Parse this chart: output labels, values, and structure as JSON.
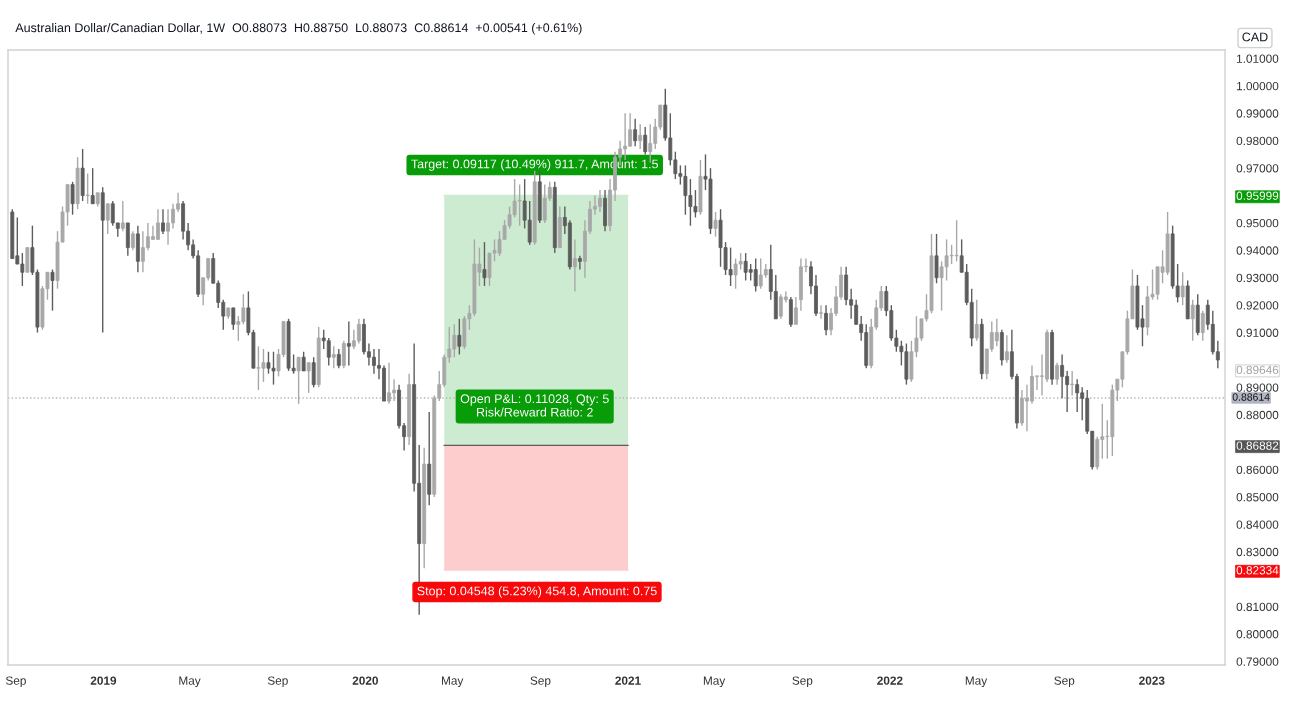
{
  "chart_data": {
    "type": "candlestick",
    "title": "Australian Dollar/Canadian Dollar, 1W  O0.88073  H0.88750  L0.88073  C0.88614  +0.00541 (+0.61%)",
    "colors": [
      "#5c5c5c",
      "#5c5c5c",
      "#5c5c5c",
      "#a8a8a8",
      "#5c5c5c",
      "#5c5c5c",
      "#a8a8a8",
      "#a8a8a8",
      "#5c5c5c",
      "#a8a8a8",
      "#a8a8a8",
      "#a8a8a8",
      "#5c5c5c",
      "#a8a8a8",
      "#5c5c5c",
      "#a8a8a8",
      "#5c5c5c",
      "#a8a8a8",
      "#5c5c5c",
      "#a8a8a8",
      "#5c5c5c",
      "#5c5c5c",
      "#a8a8a8",
      "#5c5c5c",
      "#a8a8a8",
      "#5c5c5c",
      "#a8a8a8",
      "#a8a8a8",
      "#a8a8a8",
      "#a8a8a8",
      "#5c5c5c",
      "#a8a8a8",
      "#a8a8a8",
      "#a8a8a8",
      "#5c5c5c",
      "#5c5c5c",
      "#5c5c5c",
      "#5c5c5c",
      "#a8a8a8",
      "#a8a8a8",
      "#5c5c5c",
      "#5c5c5c",
      "#5c5c5c",
      "#a8a8a8",
      "#5c5c5c",
      "#a8a8a8",
      "#a8a8a8",
      "#5c5c5c",
      "#5c5c5c",
      "#a8a8a8",
      "#a8a8a8",
      "#5c5c5c",
      "#5c5c5c",
      "#a8a8a8",
      "#a8a8a8",
      "#5c5c5c",
      "#5c5c5c",
      "#a8a8a8",
      "#5c5c5c",
      "#a8a8a8",
      "#5c5c5c",
      "#a8a8a8",
      "#5c5c5c",
      "#5c5c5c",
      "#a8a8a8",
      "#5c5c5c",
      "#a8a8a8",
      "#5c5c5c",
      "#a8a8a8",
      "#a8a8a8",
      "#5c5c5c",
      "#5c5c5c",
      "#5c5c5c",
      "#5c5c5c",
      "#5c5c5c",
      "#a8a8a8",
      "#a8a8a8",
      "#5c5c5c",
      "#5c5c5c",
      "#a8a8a8",
      "#5c5c5c",
      "#5c5c5c",
      "#a8a8a8",
      "#5c5c5c",
      "#a8a8a8",
      "#a8a8a8",
      "#a8a8a8",
      "#a8a8a8",
      "#a8a8a8",
      "#5c5c5c",
      "#a8a8a8",
      "#a8a8a8",
      "#a8a8a8",
      "#a8a8a8",
      "#5c5c5c",
      "#a8a8a8",
      "#a8a8a8",
      "#a8a8a8",
      "#a8a8a8",
      "#a8a8a8",
      "#a8a8a8",
      "#a8a8a8",
      "#5c5c5c",
      "#5c5c5c",
      "#a8a8a8",
      "#5c5c5c",
      "#a8a8a8",
      "#a8a8a8",
      "#5c5c5c",
      "#a8a8a8",
      "#5c5c5c",
      "#5c5c5c",
      "#a8a8a8",
      "#5c5c5c",
      "#a8a8a8",
      "#a8a8a8",
      "#a8a8a8",
      "#a8a8a8",
      "#5c5c5c",
      "#a8a8a8",
      "#a8a8a8",
      "#a8a8a8",
      "#a8a8a8",
      "#a8a8a8",
      "#5c5c5c",
      "#a8a8a8",
      "#5c5c5c",
      "#a8a8a8",
      "#a8a8a8",
      "#a8a8a8",
      "#5c5c5c",
      "#5c5c5c",
      "#5c5c5c",
      "#5c5c5c",
      "#5c5c5c",
      "#5c5c5c",
      "#5c5c5c",
      "#a8a8a8",
      "#5c5c5c",
      "#5c5c5c",
      "#a8a8a8",
      "#5c5c5c",
      "#5c5c5c",
      "#5c5c5c",
      "#a8a8a8",
      "#a8a8a8",
      "#5c5c5c",
      "#5c5c5c",
      "#5c5c5c",
      "#a8a8a8",
      "#a8a8a8",
      "#5c5c5c",
      "#5c5c5c",
      "#a8a8a8",
      "#a8a8a8",
      "#5c5c5c",
      "#a8a8a8",
      "#a8a8a8",
      "#a8a8a8",
      "#5c5c5c",
      "#5c5c5c",
      "#a8a8a8",
      "#5c5c5c",
      "#a8a8a8",
      "#a8a8a8",
      "#a8a8a8",
      "#5c5c5c",
      "#5c5c5c",
      "#5c5c5c",
      "#5c5c5c",
      "#5c5c5c",
      "#a8a8a8",
      "#a8a8a8",
      "#a8a8a8",
      "#5c5c5c",
      "#5c5c5c",
      "#5c5c5c",
      "#5c5c5c",
      "#5c5c5c",
      "#a8a8a8",
      "#a8a8a8",
      "#a8a8a8",
      "#a8a8a8",
      "#a8a8a8",
      "#5c5c5c",
      "#a8a8a8",
      "#a8a8a8",
      "#a8a8a8",
      "#a8a8a8",
      "#5c5c5c",
      "#5c5c5c",
      "#5c5c5c",
      "#a8a8a8",
      "#5c5c5c",
      "#a8a8a8",
      "#a8a8a8",
      "#a8a8a8",
      "#5c5c5c",
      "#a8a8a8",
      "#5c5c5c",
      "#5c5c5c",
      "#a8a8a8",
      "#a8a8a8",
      "#a8a8a8",
      "#a8a8a8",
      "#a8a8a8",
      "#a8a8a8",
      "#5c5c5c",
      "#a8a8a8",
      "#5c5c5c",
      "#5c5c5c",
      "#a8a8a8",
      "#5c5c5c",
      "#5c5c5c",
      "#5c5c5c",
      "#5c5c5c",
      "#a8a8a8",
      "#a8a8a8",
      "#a8a8a8",
      "#a8a8a8",
      "#a8a8a8",
      "#a8a8a8",
      "#a8a8a8",
      "#a8a8a8",
      "#5c5c5c",
      "#5c5c5c",
      "#a8a8a8",
      "#a8a8a8",
      "#a8a8a8",
      "#a8a8a8",
      "#a8a8a8",
      "#5c5c5c",
      "#5c5c5c",
      "#a8a8a8",
      "#5c5c5c",
      "#a8a8a8",
      "#5c5c5c",
      "#a8a8a8",
      "#5c5c5c",
      "#5c5c5c",
      "#5c5c5c"
    ],
    "x": [
      "2018-08-27",
      "2018-09-03",
      "2018-09-10",
      "2018-09-17",
      "2018-09-24",
      "2018-10-01",
      "2018-10-08",
      "2018-10-15",
      "2018-10-22",
      "2018-10-29",
      "2018-11-05",
      "2018-11-12",
      "2018-11-19",
      "2018-11-26",
      "2018-12-03",
      "2018-12-10",
      "2018-12-17",
      "2018-12-24",
      "2018-12-31",
      "2019-01-07",
      "2019-01-14",
      "2019-01-21",
      "2019-01-28",
      "2019-02-04",
      "2019-02-11",
      "2019-02-18",
      "2019-02-25",
      "2019-03-04",
      "2019-03-11",
      "2019-03-18",
      "2019-03-25",
      "2019-04-01",
      "2019-04-08",
      "2019-04-15",
      "2019-04-22",
      "2019-04-29",
      "2019-05-06",
      "2019-05-13",
      "2019-05-20",
      "2019-05-27",
      "2019-06-03",
      "2019-06-10",
      "2019-06-17",
      "2019-06-24",
      "2019-07-01",
      "2019-07-08",
      "2019-07-15",
      "2019-07-22",
      "2019-07-29",
      "2019-08-05",
      "2019-08-12",
      "2019-08-19",
      "2019-08-26",
      "2019-09-02",
      "2019-09-09",
      "2019-09-16",
      "2019-09-23",
      "2019-09-30",
      "2019-10-07",
      "2019-10-14",
      "2019-10-21",
      "2019-10-28",
      "2019-11-04",
      "2019-11-11",
      "2019-11-18",
      "2019-11-25",
      "2019-12-02",
      "2019-12-09",
      "2019-12-16",
      "2019-12-23",
      "2019-12-30",
      "2020-01-06",
      "2020-01-13",
      "2020-01-20",
      "2020-01-27",
      "2020-02-03",
      "2020-02-10",
      "2020-02-17",
      "2020-02-24",
      "2020-03-02",
      "2020-03-09",
      "2020-03-16",
      "2020-03-23",
      "2020-03-30",
      "2020-04-06",
      "2020-04-13",
      "2020-04-20",
      "2020-04-27",
      "2020-05-04",
      "2020-05-11",
      "2020-05-18",
      "2020-05-25",
      "2020-06-01",
      "2020-06-08",
      "2020-06-15",
      "2020-06-22",
      "2020-06-29",
      "2020-07-06",
      "2020-07-13",
      "2020-07-20",
      "2020-07-27",
      "2020-08-03",
      "2020-08-10",
      "2020-08-17",
      "2020-08-24",
      "2020-08-31",
      "2020-09-07",
      "2020-09-14",
      "2020-09-21",
      "2020-09-28",
      "2020-10-05",
      "2020-10-12",
      "2020-10-19",
      "2020-10-26",
      "2020-11-02",
      "2020-11-09",
      "2020-11-16",
      "2020-11-23",
      "2020-11-30",
      "2020-12-07",
      "2020-12-14",
      "2020-12-21",
      "2020-12-28",
      "2021-01-04",
      "2021-01-11",
      "2021-01-18",
      "2021-01-25",
      "2021-02-01",
      "2021-02-08",
      "2021-02-15",
      "2021-02-22",
      "2021-03-01",
      "2021-03-08",
      "2021-03-15",
      "2021-03-22",
      "2021-03-29",
      "2021-04-05",
      "2021-04-12",
      "2021-04-19",
      "2021-04-26",
      "2021-05-03",
      "2021-05-10",
      "2021-05-17",
      "2021-05-24",
      "2021-05-31",
      "2021-06-07",
      "2021-06-14",
      "2021-06-21",
      "2021-06-28",
      "2021-07-05",
      "2021-07-12",
      "2021-07-19",
      "2021-07-26",
      "2021-08-02",
      "2021-08-09",
      "2021-08-16",
      "2021-08-23",
      "2021-08-30",
      "2021-09-06",
      "2021-09-13",
      "2021-09-20",
      "2021-09-27",
      "2021-10-04",
      "2021-10-11",
      "2021-10-18",
      "2021-10-25",
      "2021-11-01",
      "2021-11-08",
      "2021-11-15",
      "2021-11-22",
      "2021-11-29",
      "2021-12-06",
      "2021-12-13",
      "2021-12-20",
      "2021-12-27",
      "2022-01-03",
      "2022-01-10",
      "2022-01-17",
      "2022-01-24",
      "2022-01-31",
      "2022-02-07",
      "2022-02-14",
      "2022-02-21",
      "2022-02-28",
      "2022-03-07",
      "2022-03-14",
      "2022-03-21",
      "2022-03-28",
      "2022-04-04",
      "2022-04-11",
      "2022-04-18",
      "2022-04-25",
      "2022-05-02",
      "2022-05-09",
      "2022-05-16",
      "2022-05-23",
      "2022-05-30",
      "2022-06-06",
      "2022-06-13",
      "2022-06-20",
      "2022-06-27",
      "2022-07-04",
      "2022-07-11",
      "2022-07-18",
      "2022-07-25",
      "2022-08-01",
      "2022-08-08",
      "2022-08-15",
      "2022-08-22",
      "2022-08-29",
      "2022-09-05",
      "2022-09-12",
      "2022-09-19",
      "2022-09-26",
      "2022-10-03",
      "2022-10-10",
      "2022-10-17",
      "2022-10-24",
      "2022-10-31",
      "2022-11-07",
      "2022-11-14",
      "2022-11-21",
      "2022-11-28",
      "2022-12-05",
      "2022-12-12",
      "2022-12-19",
      "2022-12-26",
      "2023-01-02",
      "2023-01-09",
      "2023-01-16",
      "2023-01-23",
      "2023-01-30",
      "2023-02-06",
      "2023-02-13",
      "2023-02-20",
      "2023-02-27",
      "2023-03-06",
      "2023-03-13",
      "2023-03-20",
      "2023-03-27",
      "2023-04-03"
    ],
    "ohlc": [
      [
        0.954,
        0.955,
        0.937,
        0.937
      ],
      [
        0.938,
        0.952,
        0.935,
        0.935
      ],
      [
        0.935,
        0.939,
        0.927,
        0.932
      ],
      [
        0.932,
        0.941,
        0.932,
        0.941
      ],
      [
        0.941,
        0.949,
        0.931,
        0.932
      ],
      [
        0.932,
        0.933,
        0.91,
        0.912
      ],
      [
        0.912,
        0.927,
        0.911,
        0.926
      ],
      [
        0.926,
        0.932,
        0.922,
        0.932
      ],
      [
        0.932,
        0.933,
        0.918,
        0.929
      ],
      [
        0.929,
        0.947,
        0.926,
        0.943
      ],
      [
        0.943,
        0.956,
        0.943,
        0.954
      ],
      [
        0.954,
        0.964,
        0.949,
        0.964
      ],
      [
        0.964,
        0.965,
        0.953,
        0.957
      ],
      [
        0.957,
        0.974,
        0.955,
        0.97
      ],
      [
        0.97,
        0.977,
        0.958,
        0.96
      ],
      [
        0.96,
        0.968,
        0.957,
        0.96
      ],
      [
        0.96,
        0.97,
        0.957,
        0.957
      ],
      [
        0.957,
        0.961,
        0.956,
        0.961
      ],
      [
        0.961,
        0.963,
        0.91,
        0.951
      ],
      [
        0.951,
        0.957,
        0.946,
        0.957
      ],
      [
        0.957,
        0.958,
        0.949,
        0.95
      ],
      [
        0.95,
        0.95,
        0.945,
        0.948
      ],
      [
        0.948,
        0.958,
        0.947,
        0.95
      ],
      [
        0.95,
        0.95,
        0.938,
        0.941
      ],
      [
        0.941,
        0.947,
        0.94,
        0.946
      ],
      [
        0.946,
        0.949,
        0.932,
        0.936
      ],
      [
        0.936,
        0.947,
        0.932,
        0.941
      ],
      [
        0.941,
        0.95,
        0.94,
        0.945
      ],
      [
        0.944,
        0.949,
        0.944,
        0.945
      ],
      [
        0.944,
        0.955,
        0.944,
        0.95
      ],
      [
        0.95,
        0.955,
        0.946,
        0.947
      ],
      [
        0.947,
        0.955,
        0.942,
        0.95
      ],
      [
        0.95,
        0.957,
        0.948,
        0.955
      ],
      [
        0.955,
        0.961,
        0.954,
        0.957
      ],
      [
        0.957,
        0.958,
        0.944,
        0.947
      ],
      [
        0.947,
        0.95,
        0.94,
        0.942
      ],
      [
        0.942,
        0.944,
        0.937,
        0.938
      ],
      [
        0.938,
        0.94,
        0.923,
        0.924
      ],
      [
        0.924,
        0.93,
        0.92,
        0.93
      ],
      [
        0.93,
        0.937,
        0.929,
        0.937
      ],
      [
        0.937,
        0.939,
        0.928,
        0.928
      ],
      [
        0.928,
        0.929,
        0.919,
        0.921
      ],
      [
        0.921,
        0.922,
        0.911,
        0.916
      ],
      [
        0.916,
        0.919,
        0.915,
        0.919
      ],
      [
        0.919,
        0.919,
        0.911,
        0.913
      ],
      [
        0.913,
        0.916,
        0.907,
        0.914
      ],
      [
        0.914,
        0.924,
        0.913,
        0.919
      ],
      [
        0.919,
        0.925,
        0.909,
        0.91
      ],
      [
        0.91,
        0.911,
        0.897,
        0.897
      ],
      [
        0.897,
        0.905,
        0.889,
        0.897
      ],
      [
        0.897,
        0.904,
        0.892,
        0.899
      ],
      [
        0.899,
        0.903,
        0.895,
        0.897
      ],
      [
        0.897,
        0.903,
        0.891,
        0.896
      ],
      [
        0.896,
        0.904,
        0.894,
        0.902
      ],
      [
        0.902,
        0.914,
        0.901,
        0.914
      ],
      [
        0.914,
        0.915,
        0.896,
        0.897
      ],
      [
        0.897,
        0.902,
        0.895,
        0.896
      ],
      [
        0.896,
        0.901,
        0.884,
        0.901
      ],
      [
        0.901,
        0.903,
        0.896,
        0.896
      ],
      [
        0.896,
        0.899,
        0.888,
        0.899
      ],
      [
        0.899,
        0.901,
        0.89,
        0.891
      ],
      [
        0.891,
        0.912,
        0.89,
        0.908
      ],
      [
        0.908,
        0.911,
        0.904,
        0.907
      ],
      [
        0.907,
        0.908,
        0.898,
        0.901
      ],
      [
        0.901,
        0.905,
        0.897,
        0.902
      ],
      [
        0.902,
        0.904,
        0.897,
        0.898
      ],
      [
        0.898,
        0.907,
        0.897,
        0.906
      ],
      [
        0.906,
        0.914,
        0.898,
        0.905
      ],
      [
        0.905,
        0.911,
        0.904,
        0.907
      ],
      [
        0.907,
        0.915,
        0.906,
        0.913
      ],
      [
        0.913,
        0.915,
        0.902,
        0.903
      ],
      [
        0.903,
        0.906,
        0.898,
        0.901
      ],
      [
        0.901,
        0.904,
        0.895,
        0.898
      ],
      [
        0.898,
        0.904,
        0.893,
        0.897
      ],
      [
        0.897,
        0.898,
        0.885,
        0.885
      ],
      [
        0.885,
        0.899,
        0.884,
        0.888
      ],
      [
        0.888,
        0.893,
        0.885,
        0.889
      ],
      [
        0.889,
        0.891,
        0.875,
        0.876
      ],
      [
        0.876,
        0.877,
        0.867,
        0.872
      ],
      [
        0.872,
        0.895,
        0.869,
        0.891
      ],
      [
        0.891,
        0.906,
        0.852,
        0.855
      ],
      [
        0.855,
        0.869,
        0.807,
        0.833
      ],
      [
        0.833,
        0.868,
        0.824,
        0.862
      ],
      [
        0.862,
        0.881,
        0.847,
        0.851
      ],
      [
        0.851,
        0.887,
        0.85,
        0.886
      ],
      [
        0.886,
        0.896,
        0.885,
        0.891
      ],
      [
        0.891,
        0.902,
        0.89,
        0.901
      ],
      [
        0.901,
        0.912,
        0.899,
        0.904
      ],
      [
        0.904,
        0.913,
        0.901,
        0.909
      ],
      [
        0.909,
        0.915,
        0.902,
        0.905
      ],
      [
        0.905,
        0.916,
        0.904,
        0.915
      ],
      [
        0.915,
        0.92,
        0.911,
        0.917
      ],
      [
        0.917,
        0.944,
        0.916,
        0.935
      ],
      [
        0.932,
        0.941,
        0.927,
        0.935
      ],
      [
        0.933,
        0.943,
        0.927,
        0.93
      ],
      [
        0.93,
        0.939,
        0.927,
        0.939
      ],
      [
        0.939,
        0.944,
        0.936,
        0.94
      ],
      [
        0.939,
        0.947,
        0.938,
        0.944
      ],
      [
        0.944,
        0.951,
        0.944,
        0.949
      ],
      [
        0.949,
        0.956,
        0.948,
        0.953
      ],
      [
        0.953,
        0.966,
        0.952,
        0.958
      ],
      [
        0.958,
        0.964,
        0.949,
        0.958
      ],
      [
        0.958,
        0.966,
        0.948,
        0.951
      ],
      [
        0.951,
        0.958,
        0.942,
        0.943
      ],
      [
        0.943,
        0.969,
        0.942,
        0.965
      ],
      [
        0.965,
        0.969,
        0.95,
        0.951
      ],
      [
        0.951,
        0.964,
        0.95,
        0.959
      ],
      [
        0.959,
        0.965,
        0.958,
        0.963
      ],
      [
        0.963,
        0.965,
        0.939,
        0.941
      ],
      [
        0.941,
        0.956,
        0.941,
        0.952
      ],
      [
        0.952,
        0.956,
        0.946,
        0.949
      ],
      [
        0.95,
        0.951,
        0.933,
        0.934
      ],
      [
        0.934,
        0.944,
        0.925,
        0.937
      ],
      [
        0.937,
        0.938,
        0.933,
        0.936
      ],
      [
        0.936,
        0.951,
        0.93,
        0.947
      ],
      [
        0.947,
        0.958,
        0.946,
        0.955
      ],
      [
        0.955,
        0.96,
        0.953,
        0.956
      ],
      [
        0.956,
        0.962,
        0.954,
        0.959
      ],
      [
        0.959,
        0.962,
        0.947,
        0.949
      ],
      [
        0.949,
        0.966,
        0.947,
        0.962
      ],
      [
        0.962,
        0.976,
        0.958,
        0.974
      ],
      [
        0.974,
        0.98,
        0.971,
        0.977
      ],
      [
        0.977,
        0.99,
        0.973,
        0.978
      ],
      [
        0.978,
        0.99,
        0.978,
        0.984
      ],
      [
        0.984,
        0.988,
        0.978,
        0.98
      ],
      [
        0.98,
        0.986,
        0.977,
        0.982
      ],
      [
        0.982,
        0.985,
        0.975,
        0.976
      ],
      [
        0.976,
        0.986,
        0.972,
        0.979
      ],
      [
        0.979,
        0.988,
        0.977,
        0.985
      ],
      [
        0.985,
        0.993,
        0.984,
        0.993
      ],
      [
        0.993,
        0.999,
        0.98,
        0.981
      ],
      [
        0.981,
        0.99,
        0.971,
        0.973
      ],
      [
        0.973,
        0.976,
        0.966,
        0.968
      ],
      [
        0.968,
        0.971,
        0.964,
        0.967
      ],
      [
        0.967,
        0.971,
        0.953,
        0.96
      ],
      [
        0.96,
        0.966,
        0.949,
        0.956
      ],
      [
        0.956,
        0.962,
        0.952,
        0.954
      ],
      [
        0.954,
        0.973,
        0.953,
        0.967
      ],
      [
        0.967,
        0.975,
        0.962,
        0.966
      ],
      [
        0.966,
        0.97,
        0.946,
        0.948
      ],
      [
        0.948,
        0.954,
        0.945,
        0.951
      ],
      [
        0.951,
        0.955,
        0.934,
        0.941
      ],
      [
        0.941,
        0.943,
        0.931,
        0.933
      ],
      [
        0.933,
        0.941,
        0.927,
        0.931
      ],
      [
        0.931,
        0.937,
        0.926,
        0.935
      ],
      [
        0.935,
        0.939,
        0.933,
        0.936
      ],
      [
        0.936,
        0.939,
        0.929,
        0.932
      ],
      [
        0.933,
        0.935,
        0.929,
        0.932
      ],
      [
        0.933,
        0.937,
        0.925,
        0.927
      ],
      [
        0.927,
        0.937,
        0.926,
        0.931
      ],
      [
        0.931,
        0.935,
        0.93,
        0.933
      ],
      [
        0.933,
        0.942,
        0.922,
        0.925
      ],
      [
        0.925,
        0.931,
        0.915,
        0.915
      ],
      [
        0.916,
        0.924,
        0.915,
        0.923
      ],
      [
        0.922,
        0.925,
        0.921,
        0.923
      ],
      [
        0.922,
        0.923,
        0.912,
        0.913
      ],
      [
        0.913,
        0.923,
        0.913,
        0.919
      ],
      [
        0.922,
        0.937,
        0.918,
        0.934
      ],
      [
        0.934,
        0.937,
        0.932,
        0.934
      ],
      [
        0.934,
        0.936,
        0.924,
        0.927
      ],
      [
        0.927,
        0.931,
        0.916,
        0.917
      ],
      [
        0.917,
        0.92,
        0.915,
        0.917
      ],
      [
        0.917,
        0.92,
        0.909,
        0.911
      ],
      [
        0.911,
        0.919,
        0.909,
        0.917
      ],
      [
        0.917,
        0.927,
        0.916,
        0.923
      ],
      [
        0.923,
        0.934,
        0.922,
        0.931
      ],
      [
        0.931,
        0.934,
        0.92,
        0.922
      ],
      [
        0.922,
        0.926,
        0.915,
        0.92
      ],
      [
        0.92,
        0.922,
        0.913,
        0.913
      ],
      [
        0.913,
        0.916,
        0.907,
        0.91
      ],
      [
        0.91,
        0.913,
        0.897,
        0.898
      ],
      [
        0.898,
        0.915,
        0.897,
        0.912
      ],
      [
        0.912,
        0.922,
        0.911,
        0.919
      ],
      [
        0.919,
        0.927,
        0.918,
        0.925
      ],
      [
        0.925,
        0.927,
        0.916,
        0.918
      ],
      [
        0.918,
        0.92,
        0.907,
        0.908
      ],
      [
        0.908,
        0.911,
        0.903,
        0.905
      ],
      [
        0.905,
        0.907,
        0.898,
        0.903
      ],
      [
        0.903,
        0.906,
        0.891,
        0.893
      ],
      [
        0.893,
        0.907,
        0.892,
        0.903
      ],
      [
        0.903,
        0.916,
        0.901,
        0.908
      ],
      [
        0.908,
        0.915,
        0.907,
        0.915
      ],
      [
        0.915,
        0.924,
        0.914,
        0.918
      ],
      [
        0.918,
        0.946,
        0.917,
        0.938
      ],
      [
        0.938,
        0.946,
        0.928,
        0.93
      ],
      [
        0.93,
        0.936,
        0.918,
        0.934
      ],
      [
        0.934,
        0.944,
        0.929,
        0.938
      ],
      [
        0.938,
        0.942,
        0.935,
        0.938
      ],
      [
        0.938,
        0.951,
        0.936,
        0.938
      ],
      [
        0.938,
        0.944,
        0.932,
        0.932
      ],
      [
        0.932,
        0.935,
        0.92,
        0.921
      ],
      [
        0.921,
        0.926,
        0.905,
        0.908
      ],
      [
        0.908,
        0.922,
        0.907,
        0.913
      ],
      [
        0.913,
        0.915,
        0.893,
        0.895
      ],
      [
        0.895,
        0.904,
        0.893,
        0.904
      ],
      [
        0.904,
        0.914,
        0.903,
        0.91
      ],
      [
        0.907,
        0.915,
        0.905,
        0.91
      ],
      [
        0.91,
        0.911,
        0.898,
        0.9
      ],
      [
        0.9,
        0.909,
        0.899,
        0.903
      ],
      [
        0.903,
        0.911,
        0.893,
        0.894
      ],
      [
        0.894,
        0.895,
        0.875,
        0.877
      ],
      [
        0.877,
        0.889,
        0.876,
        0.886
      ],
      [
        0.885,
        0.891,
        0.874,
        0.886
      ],
      [
        0.885,
        0.898,
        0.884,
        0.894
      ],
      [
        0.894,
        0.894,
        0.889,
        0.894
      ],
      [
        0.894,
        0.902,
        0.887,
        0.894
      ],
      [
        0.893,
        0.911,
        0.892,
        0.91
      ],
      [
        0.91,
        0.911,
        0.891,
        0.893
      ],
      [
        0.893,
        0.899,
        0.891,
        0.898
      ],
      [
        0.898,
        0.902,
        0.886,
        0.894
      ],
      [
        0.894,
        0.896,
        0.881,
        0.891
      ],
      [
        0.891,
        0.896,
        0.887,
        0.891
      ],
      [
        0.891,
        0.893,
        0.881,
        0.888
      ],
      [
        0.888,
        0.89,
        0.878,
        0.886
      ],
      [
        0.886,
        0.889,
        0.873,
        0.874
      ],
      [
        0.874,
        0.874,
        0.86,
        0.861
      ],
      [
        0.861,
        0.872,
        0.86,
        0.871
      ],
      [
        0.871,
        0.884,
        0.864,
        0.872
      ],
      [
        0.872,
        0.878,
        0.864,
        0.872
      ],
      [
        0.872,
        0.891,
        0.865,
        0.889
      ],
      [
        0.889,
        0.893,
        0.885,
        0.893
      ],
      [
        0.893,
        0.903,
        0.89,
        0.903
      ],
      [
        0.903,
        0.918,
        0.902,
        0.915
      ],
      [
        0.915,
        0.933,
        0.915,
        0.927
      ],
      [
        0.927,
        0.931,
        0.911,
        0.912
      ],
      [
        0.915,
        0.92,
        0.905,
        0.912
      ],
      [
        0.912,
        0.927,
        0.909,
        0.923
      ],
      [
        0.923,
        0.933,
        0.922,
        0.924
      ],
      [
        0.924,
        0.934,
        0.922,
        0.934
      ],
      [
        0.932,
        0.94,
        0.928,
        0.934
      ],
      [
        0.932,
        0.954,
        0.931,
        0.946
      ],
      [
        0.946,
        0.949,
        0.926,
        0.927
      ],
      [
        0.927,
        0.935,
        0.921,
        0.923
      ],
      [
        0.923,
        0.932,
        0.92,
        0.927
      ],
      [
        0.927,
        0.929,
        0.915,
        0.915
      ],
      [
        0.915,
        0.922,
        0.907,
        0.92
      ],
      [
        0.92,
        0.924,
        0.909,
        0.91
      ],
      [
        0.91,
        0.918,
        0.907,
        0.917
      ],
      [
        0.92,
        0.922,
        0.911,
        0.913
      ],
      [
        0.913,
        0.918,
        0.902,
        0.903
      ],
      [
        0.903,
        0.907,
        0.897,
        0.9
      ]
    ],
    "xlim": [
      "2018-08-21",
      "2023-04-13"
    ],
    "xticks": [
      {
        "value": "2018-09-01",
        "label": "Sep"
      },
      {
        "value": "2019-01-01",
        "label": "2019"
      },
      {
        "value": "2019-05-01",
        "label": "May"
      },
      {
        "value": "2019-09-01",
        "label": "Sep"
      },
      {
        "value": "2020-01-01",
        "label": "2020"
      },
      {
        "value": "2020-05-01",
        "label": "May"
      },
      {
        "value": "2020-09-01",
        "label": "Sep"
      },
      {
        "value": "2021-01-01",
        "label": "2021"
      },
      {
        "value": "2021-05-01",
        "label": "May"
      },
      {
        "value": "2021-09-01",
        "label": "Sep"
      },
      {
        "value": "2022-01-01",
        "label": "2022"
      },
      {
        "value": "2022-05-01",
        "label": "May"
      },
      {
        "value": "2022-09-01",
        "label": "Sep"
      },
      {
        "value": "2023-01-01",
        "label": "2023"
      }
    ],
    "ylim": [
      0.7887,
      1.0131
    ],
    "yticks": [
      {
        "value": 0.79,
        "label": "0.79000"
      },
      {
        "value": 0.8,
        "label": "0.80000"
      },
      {
        "value": 0.81,
        "label": "0.81000"
      },
      {
        "value": 0.82334,
        "label": "0.82334"
      },
      {
        "value": 0.83,
        "label": "0.83000"
      },
      {
        "value": 0.84,
        "label": "0.84000"
      },
      {
        "value": 0.85,
        "label": "0.85000"
      },
      {
        "value": 0.86,
        "label": "0.86000"
      },
      {
        "value": 0.86882,
        "label": "0.86882"
      },
      {
        "value": 0.88,
        "label": "0.88000"
      },
      {
        "value": 0.89,
        "label": "0.89000"
      },
      {
        "value": 0.89646,
        "label": "0.89646"
      },
      {
        "value": 0.91,
        "label": "0.91000"
      },
      {
        "value": 0.92,
        "label": "0.92000"
      },
      {
        "value": 0.93,
        "label": "0.93000"
      },
      {
        "value": 0.94,
        "label": "0.94000"
      },
      {
        "value": 0.95,
        "label": "0.95000"
      },
      {
        "value": 0.95999,
        "label": "0.95999"
      },
      {
        "value": 0.97,
        "label": "0.97000"
      },
      {
        "value": 0.98,
        "label": "0.98000"
      },
      {
        "value": 0.99,
        "label": "0.99000"
      },
      {
        "value": 1.0,
        "label": "1.00000"
      },
      {
        "value": 1.01,
        "label": "1.01000"
      }
    ],
    "series": [
      {
        "type": "line",
        "x": [
          "2020-04-20",
          "2021-01-01"
        ],
        "values": [
          0.95999,
          0.95999
        ],
        "color": "#cdebd0",
        "upper": [
          0.95999,
          0.95999
        ],
        "lower": [
          0.86882,
          0.86882
        ]
      },
      {
        "type": "line",
        "x": [
          "2020-04-20",
          "2021-01-01"
        ],
        "values": [
          0.82334,
          0.82334
        ],
        "color": "#fdcccc",
        "upper": [
          0.86882,
          0.86882
        ],
        "lower": [
          0.82334,
          0.82334
        ]
      },
      {
        "type": "line",
        "x": [
          "2020-04-20",
          "2021-01-01"
        ],
        "values": [
          0.86882,
          0.86882
        ],
        "color": "#5d5d5d"
      }
    ],
    "ref_lines": [
      {
        "axis": "y",
        "value": 0.88614,
        "label": "0.88614",
        "color": "#b2b5be",
        "line_style": "dotted"
      }
    ],
    "annotations": [
      {
        "text": "Target: 0.09117 (10.49%) 911.7, Amount: 1.5",
        "x": "2020-08-24",
        "y": 0.95999
      },
      {
        "text": "Open P&L: 0.11028, Qty: 5\nRisk/Reward Ratio: 2",
        "x": "2020-08-24",
        "y": 0.86882
      },
      "Stop: 0.04548 (5.23%) 454.8, Amount: 0.75",
      "CAD"
    ]
  }
}
